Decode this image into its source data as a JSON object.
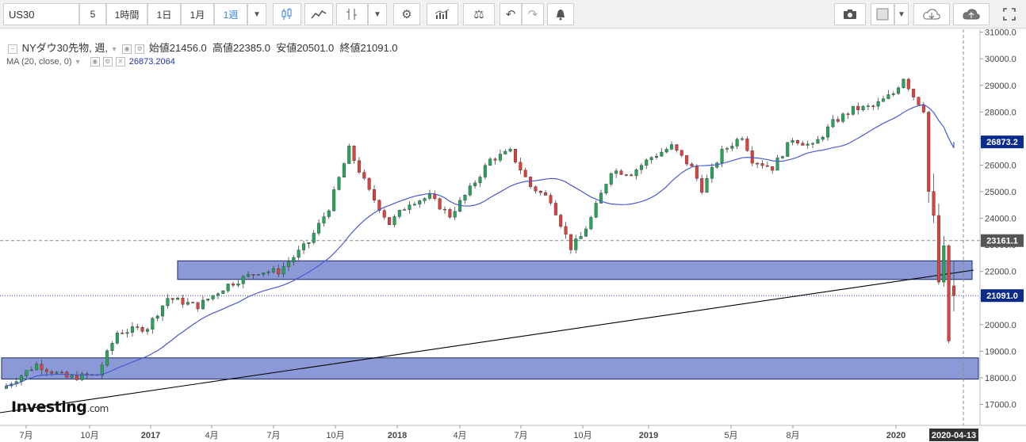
{
  "toolbar": {
    "symbol": "US30",
    "intervals": [
      "5",
      "1時間",
      "1日",
      "1月",
      "1週"
    ],
    "active_interval": "1週",
    "icons": [
      "dropdown-icon",
      "candles-icon",
      "line-chart-icon",
      "bar-type-icon",
      "dropdown-icon",
      "gear-icon",
      "indicators-icon",
      "compare-icon",
      "undo-icon",
      "redo-icon",
      "alert-icon",
      "camera-icon",
      "square-icon",
      "dropdown-icon",
      "cloud-download-icon",
      "cloud-upload-icon",
      "fullscreen-icon"
    ]
  },
  "legend": {
    "title": "NYダウ30先物, 週,",
    "open_label": "始値",
    "open": "21456.0",
    "high_label": "高値",
    "high": "22385.0",
    "low_label": "安値",
    "low": "20501.0",
    "close_label": "終値",
    "close": "21091.0",
    "ma_label": "MA (20, close, 0)",
    "ma_value": "26873.2064"
  },
  "logo": {
    "brand": "Investing",
    "suffix": ".com"
  },
  "chart_data": {
    "type": "candlestick",
    "ylim": [
      16500,
      31200
    ],
    "y_ticks": [
      "17000.0",
      "18000.0",
      "19000.0",
      "20000.0",
      "21000.0",
      "22000.0",
      "23000.0",
      "24000.0",
      "25000.0",
      "26000.0",
      "27000.0",
      "28000.0",
      "29000.0",
      "30000.0",
      "31000.0"
    ],
    "x_ticks": [
      "7月",
      "10月",
      "2017",
      "4月",
      "7月",
      "10月",
      "2018",
      "4月",
      "7月",
      "10月",
      "2019",
      "5月",
      "8月",
      "2020"
    ],
    "price_labels": [
      {
        "text": "26873.2",
        "value": 26873.2,
        "color": "#0a2a8c"
      },
      {
        "text": "23161.1",
        "value": 23161.1,
        "color": "#555555"
      },
      {
        "text": "21091.0",
        "value": 21091.0,
        "color": "#0a2a8c"
      }
    ],
    "date_label": "2020-04-13",
    "zones": [
      [
        21700,
        22400
      ],
      [
        17950,
        18750
      ]
    ],
    "colors": {
      "up": "#26a65b",
      "down": "#e0413b",
      "ma": "#4a5bd1",
      "zone": "#8b9ad6"
    },
    "anchors": [
      [
        0,
        17700
      ],
      [
        6,
        18500
      ],
      [
        12,
        18000
      ],
      [
        18,
        18100
      ],
      [
        22,
        19700
      ],
      [
        28,
        19900
      ],
      [
        32,
        21000
      ],
      [
        38,
        20700
      ],
      [
        44,
        21500
      ],
      [
        50,
        22000
      ],
      [
        54,
        22000
      ],
      [
        60,
        23100
      ],
      [
        64,
        24400
      ],
      [
        68,
        26600
      ],
      [
        72,
        25000
      ],
      [
        76,
        23800
      ],
      [
        80,
        24600
      ],
      [
        84,
        24800
      ],
      [
        88,
        24100
      ],
      [
        92,
        25100
      ],
      [
        96,
        26200
      ],
      [
        100,
        26500
      ],
      [
        104,
        25200
      ],
      [
        108,
        24700
      ],
      [
        112,
        22900
      ],
      [
        114,
        23300
      ],
      [
        116,
        24000
      ],
      [
        120,
        25800
      ],
      [
        124,
        25700
      ],
      [
        128,
        26300
      ],
      [
        132,
        26700
      ],
      [
        136,
        25900
      ],
      [
        138,
        25100
      ],
      [
        142,
        26500
      ],
      [
        146,
        27100
      ],
      [
        148,
        26200
      ],
      [
        152,
        25900
      ],
      [
        156,
        27000
      ],
      [
        160,
        26700
      ],
      [
        164,
        27600
      ],
      [
        168,
        28100
      ],
      [
        172,
        28200
      ],
      [
        176,
        28700
      ],
      [
        178,
        29300
      ],
      [
        180,
        28600
      ],
      [
        182,
        28100
      ],
      [
        183,
        25000
      ],
      [
        184,
        23800
      ],
      [
        185,
        21600
      ],
      [
        186,
        22600
      ],
      [
        187,
        19400
      ],
      [
        188,
        21400
      ]
    ],
    "final_candles": [
      {
        "o": 21456,
        "h": 22385,
        "l": 20501,
        "c": 21091
      }
    ]
  }
}
